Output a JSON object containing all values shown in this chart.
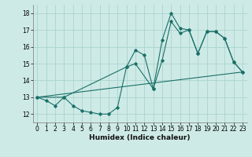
{
  "xlabel": "Humidex (Indice chaleur)",
  "background_color": "#ceeae6",
  "grid_color": "#aad4ce",
  "line_color": "#1a7068",
  "ylim": [
    11.5,
    18.5
  ],
  "xlim": [
    -0.5,
    23.5
  ],
  "y_ticks": [
    12,
    13,
    14,
    15,
    16,
    17,
    18
  ],
  "x_ticks": [
    0,
    1,
    2,
    3,
    4,
    5,
    6,
    7,
    8,
    9,
    10,
    11,
    12,
    13,
    14,
    15,
    16,
    17,
    18,
    19,
    20,
    21,
    22,
    23
  ],
  "line1_x": [
    0,
    1,
    2,
    3,
    4,
    5,
    6,
    7,
    8,
    9,
    10,
    11,
    12,
    13,
    14,
    15,
    16,
    17,
    18,
    19,
    20,
    21,
    22,
    23
  ],
  "line1_y": [
    13.0,
    12.8,
    12.5,
    13.0,
    12.5,
    12.2,
    12.1,
    12.0,
    12.0,
    12.4,
    14.8,
    15.8,
    15.5,
    13.5,
    16.4,
    18.0,
    17.1,
    17.0,
    15.6,
    16.9,
    16.9,
    16.5,
    15.1,
    14.5
  ],
  "line2_x": [
    0,
    3,
    10,
    11,
    13,
    14,
    15,
    16,
    17,
    18,
    19,
    20,
    21,
    22,
    23
  ],
  "line2_y": [
    13.0,
    13.0,
    14.8,
    15.0,
    13.5,
    15.2,
    17.5,
    16.8,
    17.0,
    15.6,
    16.9,
    16.9,
    16.5,
    15.1,
    14.5
  ],
  "line3_x": [
    0,
    23
  ],
  "line3_y": [
    13.0,
    14.5
  ]
}
